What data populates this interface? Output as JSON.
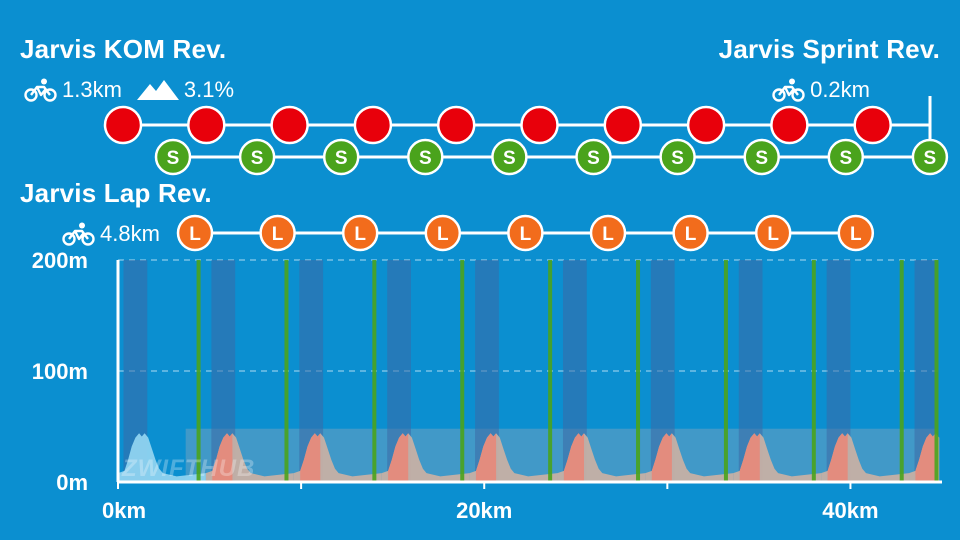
{
  "segments": {
    "kom": {
      "title": "Jarvis KOM Rev.",
      "distance": "1.3km",
      "grade": "3.1%",
      "marker_color": "#e8000b",
      "count": 10,
      "icon": "bike-icon"
    },
    "sprint": {
      "title": "Jarvis Sprint Rev.",
      "distance": "0.2km",
      "marker_letter": "S",
      "marker_color": "#4aa31c",
      "count": 10,
      "icon": "bike-icon"
    },
    "lap": {
      "title": "Jarvis Lap Rev.",
      "distance": "4.8km",
      "marker_letter": "L",
      "marker_color": "#f26c1c",
      "count": 9,
      "icon": "bike-icon"
    }
  },
  "watermark": "ZWIFTHUB",
  "chart_data": {
    "type": "area",
    "title": "",
    "xlabel": "",
    "ylabel": "",
    "xlim": [
      0,
      45
    ],
    "ylim": [
      0,
      200
    ],
    "y_ticks": [
      {
        "value": 0,
        "label": "0m"
      },
      {
        "value": 100,
        "label": "100m"
      },
      {
        "value": 200,
        "label": "200m"
      }
    ],
    "x_ticks": [
      {
        "value": 0,
        "label": "0km"
      },
      {
        "value": 20,
        "label": "20km"
      },
      {
        "value": 40,
        "label": "40km"
      }
    ],
    "grid": true,
    "lap_length_km": 4.8,
    "laps": 10,
    "elevation_profile_one_lap": [
      [
        0,
        8
      ],
      [
        0.35,
        10
      ],
      [
        0.55,
        20
      ],
      [
        0.75,
        32
      ],
      [
        0.95,
        40
      ],
      [
        1.15,
        44
      ],
      [
        1.3,
        41
      ],
      [
        1.45,
        44
      ],
      [
        1.65,
        40
      ],
      [
        1.85,
        30
      ],
      [
        2.05,
        20
      ],
      [
        2.25,
        12
      ],
      [
        2.45,
        8
      ],
      [
        3.2,
        5
      ],
      [
        4.8,
        8
      ]
    ],
    "kom_starts_km": [
      0.3,
      5.1,
      9.9,
      14.7,
      19.5,
      24.3,
      29.1,
      33.9,
      38.7,
      43.5
    ],
    "kom_length_km": 1.3,
    "sprint_starts_km": [
      4.4,
      9.2,
      14.0,
      18.8,
      23.6,
      28.4,
      33.2,
      38.0,
      42.8,
      44.7
    ],
    "sprint_length_km": 0.2,
    "lap_marks_km": [
      4.8,
      9.6,
      14.4,
      19.2,
      24.0,
      28.8,
      33.6,
      38.4,
      43.2
    ],
    "colors": {
      "background": "#0b8fd0",
      "first_lap_fill": "#8fd3ef",
      "lap_fill": "#c6b0a5",
      "kom_fill": "#e7887a",
      "kom_band": "#3d6aa5",
      "sprint_line": "#4aa31c",
      "lap_overlay": "#6fa2c1"
    }
  }
}
